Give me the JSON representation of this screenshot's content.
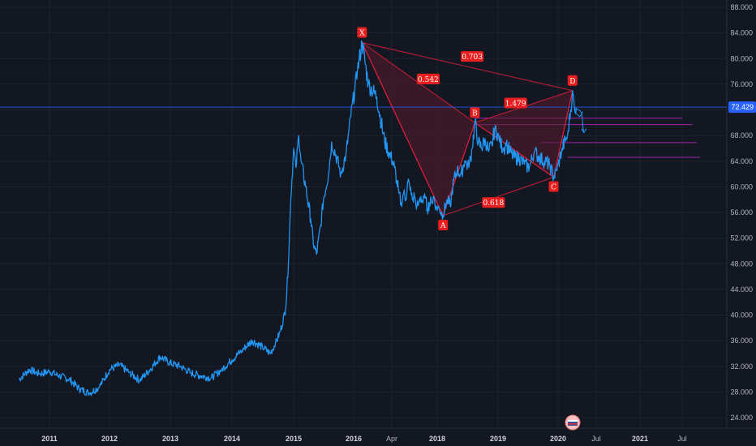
{
  "chart_data": {
    "type": "line",
    "title": "",
    "xlabel": "",
    "ylabel": "",
    "ylim": [
      22,
      89
    ],
    "grid": true,
    "colors": {
      "background": "#131722",
      "line": "#2196f3",
      "pattern": "#e91e3a",
      "pattern_fill": "#5a1a2c",
      "level_line": "#9c27b0",
      "last_price_line": "#2962ff",
      "axis_text": "#b2b5be"
    },
    "x_ticks": [
      {
        "label": "2011",
        "date": "2011-01-01",
        "bold": true
      },
      {
        "label": "2012",
        "date": "2012-01-01",
        "bold": true
      },
      {
        "label": "2013",
        "date": "2013-01-01",
        "bold": true
      },
      {
        "label": "2014",
        "date": "2014-01-01",
        "bold": true
      },
      {
        "label": "2015",
        "date": "2015-01-01",
        "bold": true
      },
      {
        "label": "2016",
        "date": "2016-01-01",
        "bold": true
      },
      {
        "label": "Apr",
        "date": "2016-04-01",
        "bold": false
      },
      {
        "label": "2018",
        "date": "2018-01-01",
        "bold": true
      },
      {
        "label": "2019",
        "date": "2019-01-01",
        "bold": true
      },
      {
        "label": "2020",
        "date": "2020-01-01",
        "bold": true
      },
      {
        "label": "Jul",
        "date": "2020-07-01",
        "bold": false
      },
      {
        "label": "2021",
        "date": "2021-01-01",
        "bold": true
      },
      {
        "label": "Jul",
        "date": "2021-07-01",
        "bold": false
      }
    ],
    "y_ticks": [
      "88.000",
      "84.000",
      "80.000",
      "76.000",
      "72.000",
      "68.000",
      "64.000",
      "60.000",
      "56.000",
      "52.000",
      "48.000",
      "44.000",
      "40.000",
      "36.000",
      "32.000",
      "28.000",
      "24.000"
    ],
    "last_price": "72.429",
    "series": [
      {
        "points": [
          [
            "2010-07-01",
            30
          ],
          [
            "2010-09-01",
            31.5
          ],
          [
            "2010-11-01",
            30.8
          ],
          [
            "2011-01-01",
            31.2
          ],
          [
            "2011-03-01",
            30.5
          ],
          [
            "2011-05-01",
            30
          ],
          [
            "2011-07-01",
            28.5
          ],
          [
            "2011-09-01",
            27.8
          ],
          [
            "2011-11-01",
            28.8
          ],
          [
            "2012-01-01",
            31.5
          ],
          [
            "2012-03-01",
            32.2
          ],
          [
            "2012-05-01",
            31
          ],
          [
            "2012-07-01",
            29.8
          ],
          [
            "2012-09-01",
            31.5
          ],
          [
            "2012-11-01",
            33.5
          ],
          [
            "2013-01-01",
            32.5
          ],
          [
            "2013-03-01",
            32
          ],
          [
            "2013-05-01",
            31
          ],
          [
            "2013-07-01",
            30.5
          ],
          [
            "2013-09-01",
            30.2
          ],
          [
            "2013-11-01",
            31.5
          ],
          [
            "2014-01-01",
            33
          ],
          [
            "2014-03-01",
            34.5
          ],
          [
            "2014-05-01",
            36
          ],
          [
            "2014-07-01",
            35
          ],
          [
            "2014-08-15",
            34
          ],
          [
            "2014-09-15",
            35.5
          ],
          [
            "2014-10-15",
            37.5
          ],
          [
            "2014-11-15",
            41
          ],
          [
            "2014-12-01",
            48
          ],
          [
            "2014-12-15",
            58
          ],
          [
            "2015-01-01",
            66
          ],
          [
            "2015-01-15",
            63
          ],
          [
            "2015-02-01",
            68
          ],
          [
            "2015-02-15",
            64
          ],
          [
            "2015-03-15",
            60
          ],
          [
            "2015-04-15",
            55
          ],
          [
            "2015-05-01",
            51
          ],
          [
            "2015-05-20",
            49.5
          ],
          [
            "2015-06-15",
            54
          ],
          [
            "2015-07-01",
            58
          ],
          [
            "2015-08-01",
            62
          ],
          [
            "2015-08-20",
            67
          ],
          [
            "2015-09-15",
            65
          ],
          [
            "2015-10-15",
            62
          ],
          [
            "2015-11-15",
            65
          ],
          [
            "2015-12-15",
            71
          ],
          [
            "2016-01-10",
            78
          ],
          [
            "2016-01-21",
            82.5
          ],
          [
            "2016-02-05",
            76
          ],
          [
            "2016-02-25",
            74
          ],
          [
            "2016-03-15",
            67
          ],
          [
            "2016-04-10",
            64
          ],
          [
            "2016-05-10",
            63
          ],
          [
            "2016-06-10",
            61
          ],
          [
            "2016-07-10",
            59
          ],
          [
            "2016-08-10",
            57.5
          ],
          [
            "2016-09-15",
            59
          ],
          [
            "2016-10-15",
            58
          ],
          [
            "2016-11-15",
            61
          ],
          [
            "2016-12-15",
            59.5
          ],
          [
            "2017-01-15",
            58
          ],
          [
            "2017-02-15",
            58.5
          ],
          [
            "2017-03-15",
            56.5
          ],
          [
            "2017-04-15",
            57.5
          ],
          [
            "2017-05-15",
            58.5
          ],
          [
            "2017-06-15",
            57.5
          ],
          [
            "2017-07-15",
            58.2
          ],
          [
            "2017-08-15",
            56.5
          ],
          [
            "2017-09-15",
            57.5
          ],
          [
            "2017-10-15",
            57.5
          ],
          [
            "2017-11-15",
            58.5
          ],
          [
            "2017-12-15",
            57
          ],
          [
            "2018-01-15",
            56.5
          ],
          [
            "2018-02-05",
            55.5
          ],
          [
            "2018-03-01",
            58
          ],
          [
            "2018-03-20",
            57
          ],
          [
            "2018-04-10",
            61
          ],
          [
            "2018-05-01",
            62.5
          ],
          [
            "2018-05-25",
            62
          ],
          [
            "2018-06-15",
            64
          ],
          [
            "2018-07-10",
            63
          ],
          [
            "2018-07-30",
            66
          ],
          [
            "2018-08-15",
            70
          ],
          [
            "2018-09-05",
            67
          ],
          [
            "2018-09-25",
            66
          ],
          [
            "2018-10-15",
            67.5
          ],
          [
            "2018-11-05",
            65.5
          ],
          [
            "2018-11-25",
            66.5
          ],
          [
            "2018-12-15",
            69.5
          ],
          [
            "2019-01-10",
            67
          ],
          [
            "2019-02-01",
            66
          ],
          [
            "2019-02-20",
            66.5
          ],
          [
            "2019-03-15",
            65.5
          ],
          [
            "2019-04-10",
            64.5
          ],
          [
            "2019-05-10",
            64.5
          ],
          [
            "2019-06-10",
            63.5
          ],
          [
            "2019-07-10",
            63
          ],
          [
            "2019-08-10",
            65.5
          ],
          [
            "2019-09-10",
            64.5
          ],
          [
            "2019-10-10",
            64
          ],
          [
            "2019-11-10",
            63.5
          ],
          [
            "2019-12-05",
            61.5
          ],
          [
            "2019-12-25",
            62.5
          ],
          [
            "2020-01-20",
            66
          ],
          [
            "2020-02-15",
            68
          ],
          [
            "2020-03-01",
            72
          ],
          [
            "2020-03-10",
            75
          ],
          [
            "2020-03-20",
            72
          ],
          [
            "2020-03-28",
            72.4
          ]
        ]
      }
    ],
    "harmonic_pattern": {
      "points": [
        {
          "label": "X",
          "date": "2016-01-21",
          "value": 82.5,
          "marker_side": "above"
        },
        {
          "label": "A",
          "date": "2018-02-05",
          "value": 55.5,
          "marker_side": "below"
        },
        {
          "label": "B",
          "date": "2018-08-15",
          "value": 70,
          "marker_side": "above"
        },
        {
          "label": "C",
          "date": "2019-12-05",
          "value": 61.5,
          "marker_side": "below"
        },
        {
          "label": "D",
          "date": "2020-03-10",
          "value": 75,
          "marker_side": "above"
        }
      ],
      "ratios": [
        {
          "label": "0.542",
          "between": [
            "X",
            "B"
          ]
        },
        {
          "label": "0.703",
          "between": [
            "X",
            "D"
          ]
        },
        {
          "label": "0.618",
          "between": [
            "A",
            "C"
          ]
        },
        {
          "label": "1.479",
          "between": [
            "B",
            "D"
          ]
        }
      ],
      "levels": [
        {
          "value": 70.7,
          "from": "2018-08-15",
          "to": "2021-07-01"
        },
        {
          "value": 69.7,
          "from": "2018-08-15",
          "to": "2021-08-15"
        },
        {
          "value": 66.9,
          "from": "2019-09-15",
          "to": "2021-09-01"
        },
        {
          "value": 64.6,
          "from": "2020-02-15",
          "to": "2021-09-15"
        }
      ]
    }
  }
}
